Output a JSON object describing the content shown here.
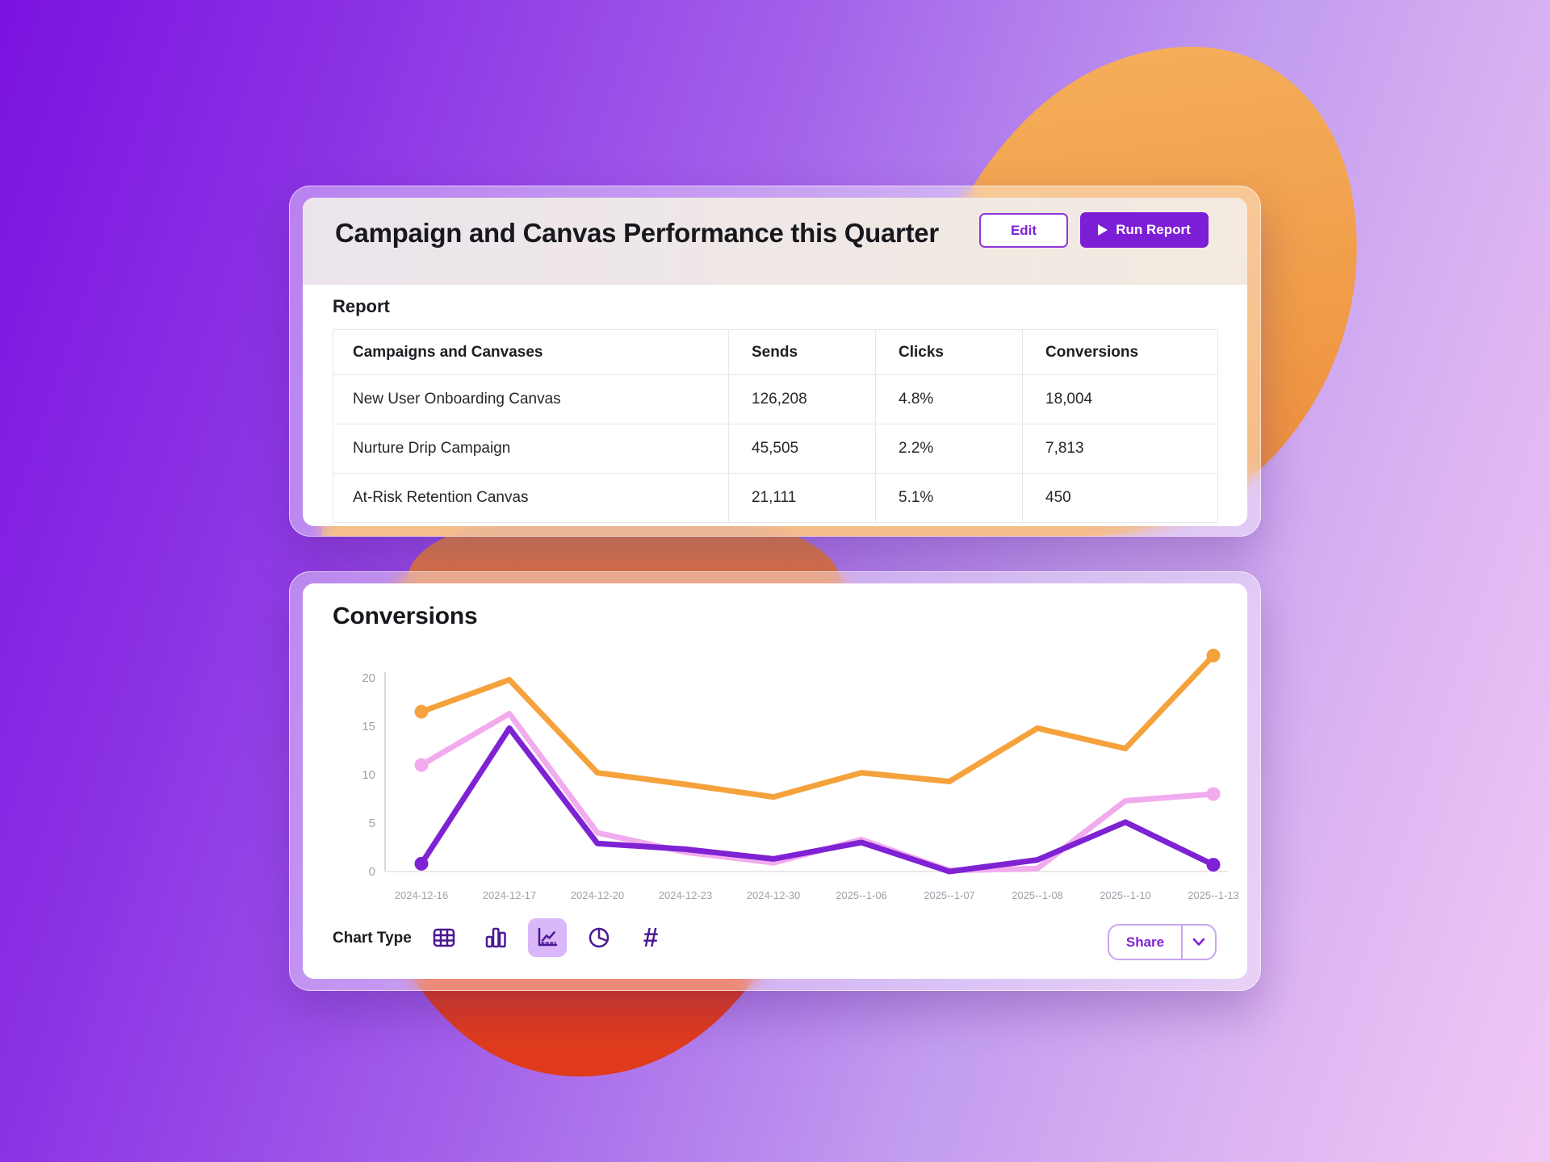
{
  "background": {
    "gradient": [
      "#7a12e0",
      "#a565ea",
      "#f1c8f5"
    ],
    "top_blob_color": "#f3a64f",
    "bottom_blob_color": "#e73d1e"
  },
  "report_card": {
    "title": "Campaign and Canvas Performance this Quarter",
    "edit_button": "Edit",
    "run_report_button": "Run Report",
    "section_label": "Report",
    "table": {
      "columns": [
        "Campaigns and Canvases",
        "Sends",
        "Clicks",
        "Conversions"
      ],
      "rows": [
        [
          "New User Onboarding Canvas",
          "126,208",
          "4.8%",
          "18,004"
        ],
        [
          "Nurture Drip Campaign",
          "45,505",
          "2.2%",
          "7,813"
        ],
        [
          "At-Risk Retention Canvas",
          "21,111",
          "5.1%",
          "450"
        ]
      ]
    }
  },
  "chart_card": {
    "title": "Conversions",
    "chart_type_label": "Chart Type",
    "chart_types": [
      {
        "name": "table",
        "selected": false
      },
      {
        "name": "bar",
        "selected": false
      },
      {
        "name": "line",
        "selected": true
      },
      {
        "name": "pie",
        "selected": false
      },
      {
        "name": "number",
        "selected": false,
        "glyph": "#"
      }
    ],
    "share_button": "Share"
  },
  "chart_data": {
    "type": "line",
    "title": "Conversions",
    "x": [
      "2024-12-16",
      "2024-12-17",
      "2024-12-20",
      "2024-12-23",
      "2024-12-30",
      "2025--1-06",
      "2025--1-07",
      "2025--1-08",
      "2025--1-10",
      "2025--1-13"
    ],
    "series": [
      {
        "name": "orange",
        "color": "#f5a23c",
        "values": [
          16.5,
          19.8,
          10.2,
          9.0,
          7.7,
          10.2,
          9.3,
          14.8,
          12.7,
          22.3
        ]
      },
      {
        "name": "pink",
        "color": "#f2abee",
        "values": [
          11.0,
          16.3,
          4.0,
          2.0,
          0.9,
          3.3,
          0.1,
          0.3,
          7.3,
          8.0
        ]
      },
      {
        "name": "purple",
        "color": "#7e22d4",
        "values": [
          0.8,
          14.8,
          2.9,
          2.3,
          1.3,
          3.0,
          0.0,
          1.2,
          5.1,
          0.7
        ]
      }
    ],
    "yticks": [
      0,
      5,
      10,
      15,
      20
    ],
    "ylim": [
      0,
      22.5
    ],
    "grid": false,
    "legend": "none",
    "tick_color": "#9ba1a8",
    "axis_color": "#d8d8dd",
    "baseline_color": "#ece7ea"
  }
}
